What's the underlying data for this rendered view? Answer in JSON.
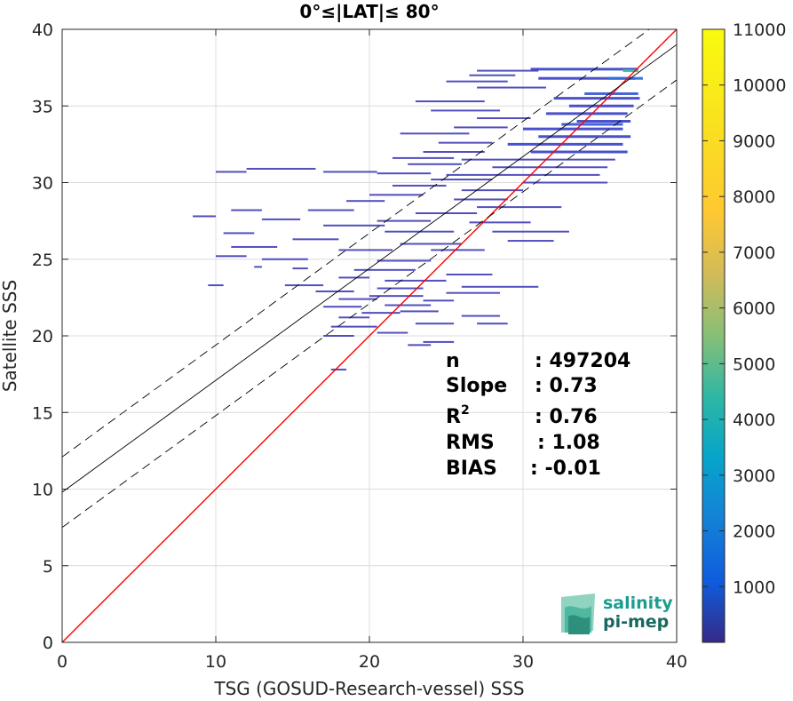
{
  "chart_data": {
    "type": "heatmap",
    "title": "0°≤|LAT|≤ 80°",
    "xlabel": "TSG (GOSUD-Research-vessel) SSS",
    "ylabel": "Satellite SSS",
    "xlim": [
      0,
      40
    ],
    "ylim": [
      0,
      40
    ],
    "xticks": [
      "0",
      "10",
      "20",
      "30",
      "40"
    ],
    "yticks": [
      "0",
      "5",
      "10",
      "15",
      "20",
      "25",
      "30",
      "35",
      "40"
    ],
    "grid": true,
    "colorbar": {
      "range": [
        0,
        11000
      ],
      "ticks": [
        "1000",
        "2000",
        "3000",
        "4000",
        "5000",
        "6000",
        "7000",
        "8000",
        "9000",
        "10000",
        "11000"
      ],
      "colormap": "parula"
    },
    "lines": [
      {
        "role": "identity",
        "color": "#ff0000",
        "slope": 1,
        "intercept": 0
      },
      {
        "role": "regression",
        "color": "#000000",
        "slope": 0.73,
        "intercept": 9.8
      },
      {
        "role": "regression-plus-2sd",
        "color": "#000000",
        "dash": true,
        "slope": 0.73,
        "intercept": 12.1
      },
      {
        "role": "regression-minus-2sd",
        "color": "#000000",
        "dash": true,
        "slope": 0.73,
        "intercept": 7.5
      }
    ],
    "density_segments": [
      [
        30.5,
        37.5,
        37.4,
        2
      ],
      [
        31.0,
        37.3,
        36.8,
        2
      ],
      [
        32.0,
        37.6,
        35.5,
        2
      ],
      [
        33.0,
        37.2,
        35.0,
        2
      ],
      [
        31.5,
        36.8,
        34.5,
        2
      ],
      [
        33.5,
        37.0,
        34.0,
        2
      ],
      [
        30.0,
        36.5,
        33.5,
        2
      ],
      [
        31.0,
        37.0,
        33.0,
        2
      ],
      [
        29.0,
        36.5,
        32.5,
        2
      ],
      [
        30.5,
        36.8,
        32.0,
        2
      ],
      [
        26.0,
        36.0,
        31.5,
        1
      ],
      [
        28.0,
        35.5,
        31.0,
        1
      ],
      [
        25.0,
        35.0,
        30.5,
        1
      ],
      [
        30.0,
        35.5,
        30.0,
        1
      ],
      [
        32.5,
        36.5,
        33.8,
        3
      ],
      [
        34.0,
        37.5,
        35.8,
        3
      ],
      [
        35.5,
        37.8,
        36.8,
        4
      ],
      [
        36.5,
        37.5,
        37.3,
        7
      ],
      [
        27.0,
        31.0,
        37.3,
        1
      ],
      [
        26.5,
        29.5,
        37.0,
        1
      ],
      [
        25.0,
        29.0,
        36.6,
        1
      ],
      [
        27.0,
        31.5,
        36.2,
        1
      ],
      [
        23.0,
        27.5,
        35.3,
        1
      ],
      [
        24.0,
        28.5,
        34.7,
        1
      ],
      [
        27.0,
        30.5,
        34.2,
        1
      ],
      [
        25.5,
        29.0,
        33.6,
        1
      ],
      [
        22.0,
        26.5,
        33.2,
        1
      ],
      [
        24.5,
        28.0,
        32.6,
        1
      ],
      [
        23.5,
        27.5,
        32.0,
        1
      ],
      [
        21.5,
        25.5,
        31.6,
        1
      ],
      [
        22.5,
        26.0,
        31.2,
        1
      ],
      [
        20.5,
        24.0,
        30.6,
        1
      ],
      [
        24.0,
        28.0,
        30.2,
        1
      ],
      [
        10.0,
        12.0,
        30.7,
        1
      ],
      [
        12.0,
        16.5,
        30.9,
        1
      ],
      [
        17.0,
        20.5,
        30.7,
        1
      ],
      [
        21.5,
        25.0,
        29.8,
        1
      ],
      [
        20.0,
        23.5,
        29.2,
        1
      ],
      [
        26.0,
        30.0,
        29.5,
        1
      ],
      [
        25.5,
        29.0,
        28.9,
        1
      ],
      [
        18.5,
        21.0,
        28.8,
        1
      ],
      [
        27.0,
        32.5,
        28.4,
        1
      ],
      [
        16.0,
        19.0,
        28.2,
        1
      ],
      [
        23.0,
        27.0,
        28.0,
        1
      ],
      [
        11.0,
        13.0,
        28.2,
        1
      ],
      [
        8.5,
        10.0,
        27.8,
        1
      ],
      [
        13.0,
        15.5,
        27.6,
        1
      ],
      [
        20.5,
        24.0,
        27.5,
        1
      ],
      [
        26.5,
        30.5,
        27.4,
        1
      ],
      [
        17.0,
        21.0,
        27.2,
        1
      ],
      [
        28.0,
        33.0,
        26.8,
        1
      ],
      [
        21.0,
        25.5,
        26.8,
        1
      ],
      [
        10.5,
        12.5,
        26.7,
        1
      ],
      [
        15.0,
        18.0,
        26.3,
        1
      ],
      [
        29.0,
        32.0,
        26.2,
        1
      ],
      [
        22.0,
        26.0,
        26.0,
        1
      ],
      [
        11.0,
        14.0,
        25.8,
        1
      ],
      [
        18.0,
        21.5,
        25.6,
        1
      ],
      [
        24.0,
        27.5,
        25.6,
        1
      ],
      [
        10.0,
        12.0,
        25.2,
        1
      ],
      [
        13.0,
        16.0,
        25.0,
        1
      ],
      [
        20.5,
        24.0,
        24.9,
        1
      ],
      [
        12.5,
        13.0,
        24.5,
        1
      ],
      [
        15.0,
        16.0,
        24.4,
        1
      ],
      [
        19.0,
        23.0,
        24.3,
        1
      ],
      [
        25.0,
        28.0,
        24.0,
        1
      ],
      [
        18.0,
        20.0,
        23.8,
        1
      ],
      [
        21.0,
        25.0,
        23.6,
        1
      ],
      [
        14.5,
        17.0,
        23.3,
        1
      ],
      [
        20.5,
        23.5,
        23.1,
        1
      ],
      [
        9.5,
        10.5,
        23.3,
        1
      ],
      [
        26.0,
        31.0,
        23.2,
        1
      ],
      [
        16.5,
        19.0,
        22.9,
        1
      ],
      [
        20.0,
        23.5,
        22.6,
        1
      ],
      [
        25.0,
        28.5,
        22.8,
        1
      ],
      [
        18.0,
        20.5,
        22.4,
        1
      ],
      [
        21.0,
        24.0,
        22.0,
        1
      ],
      [
        23.5,
        25.5,
        22.3,
        1
      ],
      [
        17.0,
        19.5,
        21.9,
        1
      ],
      [
        19.5,
        22.0,
        21.5,
        1
      ],
      [
        22.0,
        24.5,
        21.6,
        1
      ],
      [
        18.0,
        20.0,
        21.2,
        1
      ],
      [
        23.0,
        25.5,
        20.8,
        1
      ],
      [
        17.5,
        20.5,
        20.6,
        1
      ],
      [
        20.5,
        22.5,
        20.2,
        1
      ],
      [
        17.0,
        19.0,
        20.0,
        1
      ],
      [
        23.5,
        25.5,
        19.6,
        1
      ],
      [
        22.5,
        24.0,
        19.4,
        1
      ],
      [
        17.5,
        18.5,
        17.8,
        1
      ],
      [
        26.0,
        28.5,
        21.3,
        1
      ],
      [
        27.0,
        29.0,
        20.8,
        1
      ]
    ]
  },
  "stats": [
    {
      "label": "n",
      "value": ": 497204"
    },
    {
      "label": "Slope",
      "value": ": 0.73"
    },
    {
      "label": "R",
      "sup": "2",
      "value": ": 0.76"
    },
    {
      "label": "RMS",
      "value": ": 1.08"
    },
    {
      "label": "BIAS",
      "value": ": -0.01"
    }
  ],
  "logo": {
    "line1": "salinity",
    "line2": "pi-mep"
  }
}
